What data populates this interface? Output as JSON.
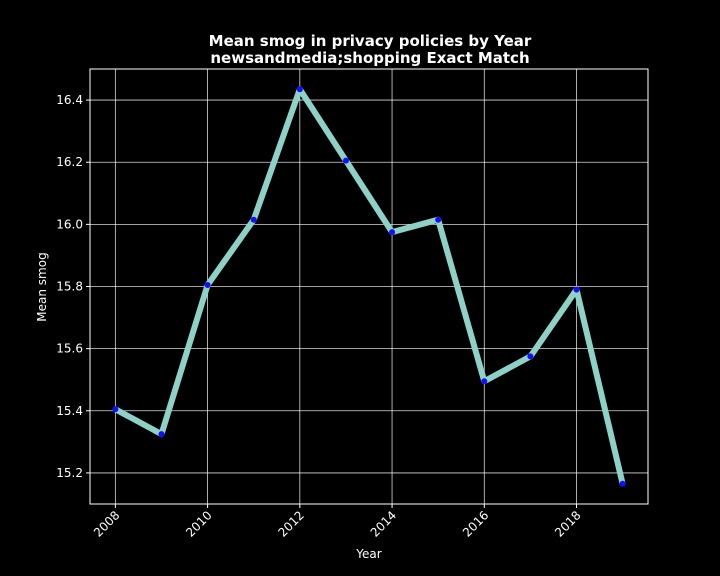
{
  "chart_data": {
    "type": "line",
    "title": "Mean smog in privacy policies by Year",
    "subtitle": "newsandmedia;shopping Exact Match",
    "xlabel": "Year",
    "ylabel": "Mean smog",
    "x": [
      2008,
      2009,
      2010,
      2011,
      2012,
      2013,
      2014,
      2015,
      2016,
      2017,
      2018,
      2019
    ],
    "series": [
      {
        "values": [
          15.405,
          15.325,
          15.805,
          16.015,
          16.435,
          16.205,
          15.975,
          16.015,
          15.495,
          15.575,
          15.79,
          15.165
        ]
      }
    ],
    "xticks": [
      "2008",
      "2010",
      "2012",
      "2014",
      "2016",
      "2018"
    ],
    "yticks": [
      "15.2",
      "15.4",
      "15.6",
      "15.8",
      "16.0",
      "16.2",
      "16.4"
    ],
    "xlim": [
      2007.45,
      2019.55
    ],
    "ylim": [
      15.1,
      16.5
    ],
    "grid": true,
    "colors": {
      "background": "#000000",
      "line": "#8ed1c6",
      "marker": "#1010ff",
      "text": "#ffffff"
    }
  }
}
